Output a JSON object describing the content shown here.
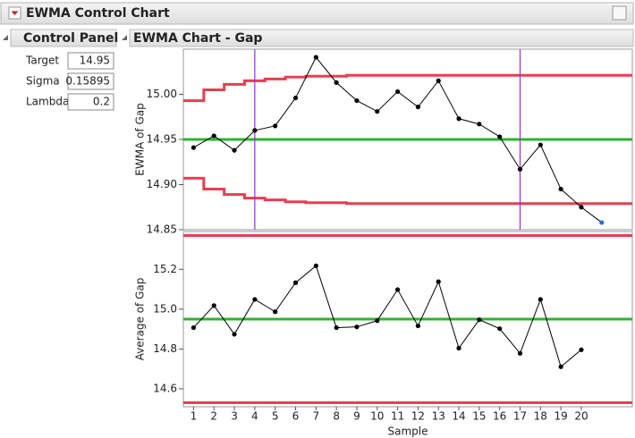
{
  "window": {
    "title": "EWMA Control Chart"
  },
  "control_panel": {
    "title": "Control Panel",
    "fields": [
      {
        "label": "Target",
        "value": 14.95
      },
      {
        "label": "Sigma",
        "value": 0.15895
      },
      {
        "label": "Lambda",
        "value": 0.2
      }
    ]
  },
  "chart_panel": {
    "title": "EWMA Chart - Gap"
  },
  "chart_data": [
    {
      "type": "line",
      "ylabel": "EWMA of Gap",
      "x": [
        1,
        2,
        3,
        4,
        5,
        6,
        7,
        8,
        9,
        10,
        11,
        12,
        13,
        14,
        15,
        16,
        17,
        18,
        19,
        20
      ],
      "values": [
        14.941,
        14.954,
        14.938,
        14.96,
        14.965,
        14.996,
        15.041,
        15.013,
        14.993,
        14.981,
        15.003,
        14.986,
        15.015,
        14.973,
        14.967,
        14.953,
        14.917,
        14.944,
        14.895,
        14.875
      ],
      "color": "#000000",
      "forecast": {
        "x": 21,
        "value": 14.858,
        "color": "#2a6fdb"
      },
      "xlim": [
        0.5,
        22.5
      ],
      "ylim": [
        14.85,
        15.05
      ],
      "yticks": [
        14.85,
        {
          "value": 14.9,
          "label": "14.90"
        },
        14.95,
        {
          "value": 15,
          "label": "15.00"
        }
      ],
      "center": 14.95,
      "center_color": "#2db52d",
      "ucl": [
        14.993,
        15.005,
        15.011,
        15.015,
        15.017,
        15.019,
        15.02,
        15.02,
        15.021,
        15.021,
        15.021,
        15.021,
        15.021,
        15.021,
        15.021,
        15.021,
        15.021,
        15.021,
        15.021,
        15.021,
        15.021,
        15.021
      ],
      "lcl": [
        14.907,
        14.895,
        14.889,
        14.885,
        14.883,
        14.881,
        14.88,
        14.88,
        14.879,
        14.879,
        14.879,
        14.879,
        14.879,
        14.879,
        14.879,
        14.879,
        14.879,
        14.879,
        14.879,
        14.879,
        14.879,
        14.879
      ],
      "limit_color": "#e83e51",
      "vlines": [
        4,
        17
      ],
      "vline_color": "#9b30c8"
    },
    {
      "type": "line",
      "ylabel": "Average of Gap",
      "xlabel": "Sample",
      "x": [
        1,
        2,
        3,
        4,
        5,
        6,
        7,
        8,
        9,
        10,
        11,
        12,
        13,
        14,
        15,
        16,
        17,
        18,
        19,
        20
      ],
      "values": [
        14.907,
        15.018,
        14.874,
        15.049,
        14.987,
        15.133,
        15.218,
        14.907,
        14.911,
        14.942,
        15.098,
        14.916,
        15.138,
        14.804,
        14.947,
        14.902,
        14.778,
        15.049,
        14.711,
        14.796
      ],
      "color": "#000000",
      "xlim": [
        0.5,
        22.5
      ],
      "ylim": [
        14.51,
        15.39
      ],
      "xticks": [
        1,
        2,
        3,
        4,
        5,
        6,
        7,
        8,
        9,
        10,
        11,
        12,
        13,
        14,
        15,
        16,
        17,
        18,
        19,
        20
      ],
      "yticks": [
        14.6,
        14.8,
        {
          "value": 15,
          "label": "15.0"
        },
        15.2
      ],
      "center": 14.95,
      "center_color": "#2db52d",
      "ucl": 15.37,
      "lcl": 14.53,
      "limit_color": "#e83e51"
    }
  ]
}
